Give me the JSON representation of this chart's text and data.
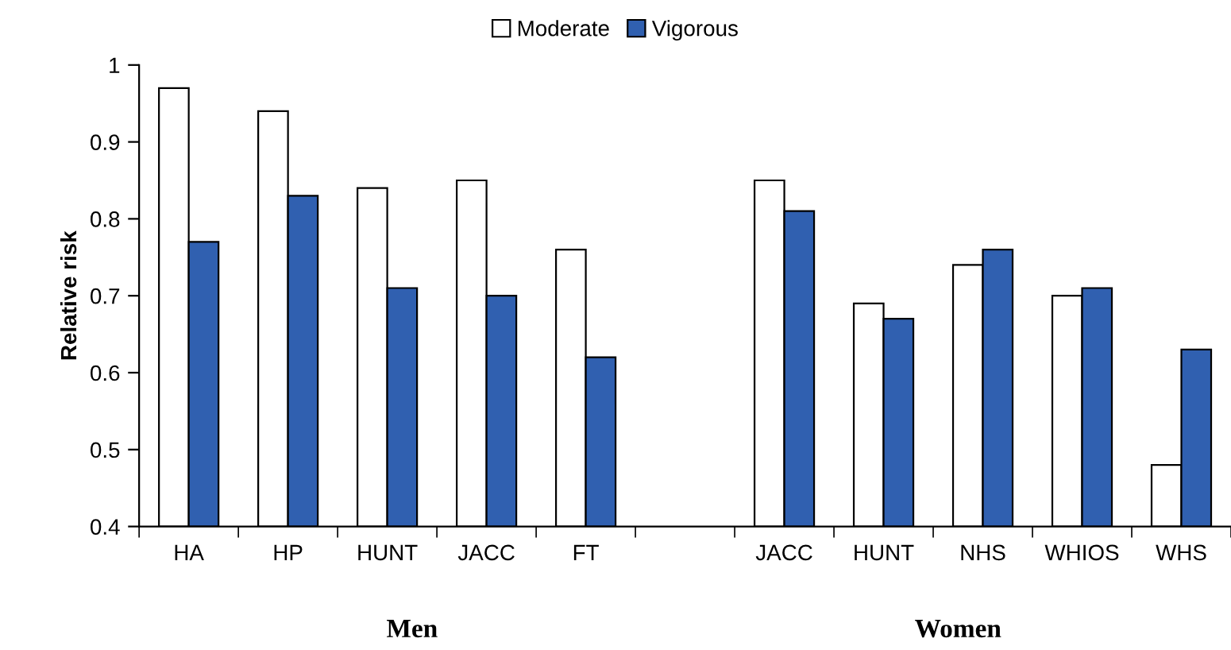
{
  "chart_data": {
    "type": "bar",
    "ylabel": "Relative risk",
    "categories": [
      "HA",
      "HP",
      "HUNT",
      "JACC",
      "FT",
      null,
      "JACC",
      "HUNT",
      "NHS",
      "WHIOS",
      "WHS"
    ],
    "series": [
      {
        "name": "Moderate",
        "color": "#ffffff",
        "values": [
          0.97,
          0.94,
          0.84,
          0.85,
          0.76,
          null,
          0.85,
          0.69,
          0.74,
          0.7,
          0.48
        ]
      },
      {
        "name": "Vigorous",
        "color": "#3060b0",
        "values": [
          0.77,
          0.83,
          0.71,
          0.7,
          0.62,
          null,
          0.81,
          0.67,
          0.76,
          0.71,
          0.63
        ]
      }
    ],
    "ylim": [
      0.4,
      1.0
    ],
    "yticks": [
      0.4,
      0.5,
      0.6,
      0.7,
      0.8,
      0.9,
      {
        "value": 1.0,
        "label": "1"
      }
    ],
    "grid": false,
    "legend": "top",
    "annotations": [
      "Men",
      "Women"
    ]
  }
}
